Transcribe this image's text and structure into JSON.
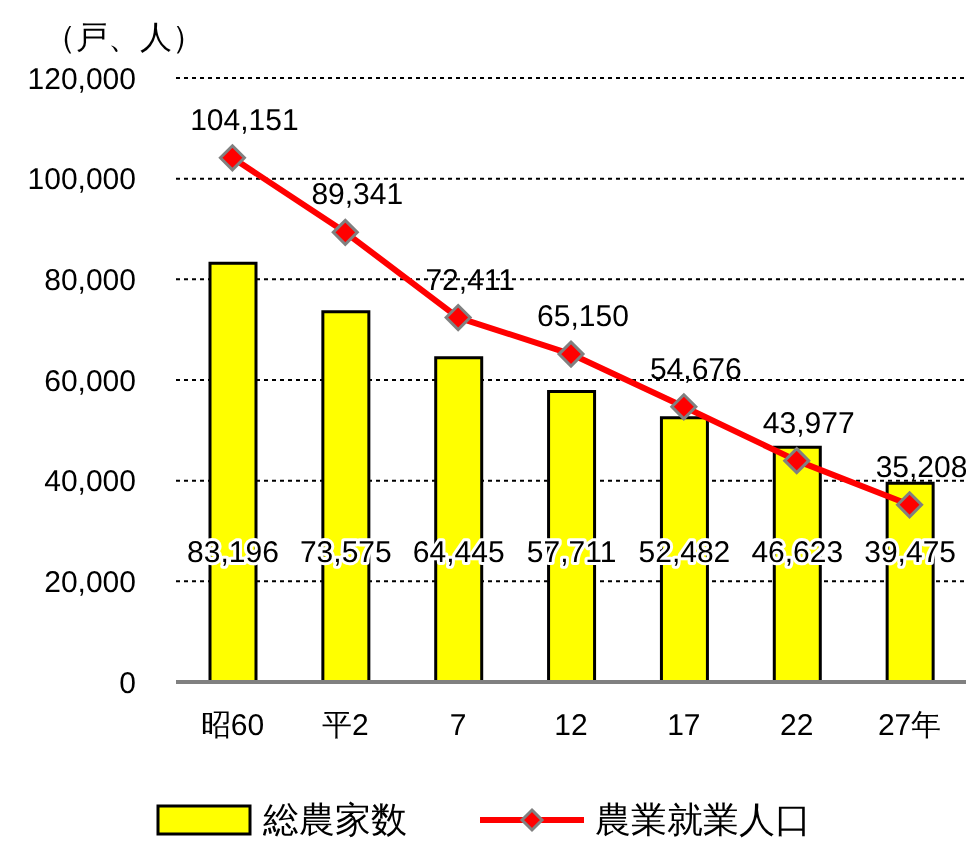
{
  "chart_data": {
    "type": "bar",
    "ylabel": "（戸、人）",
    "categories": [
      "昭60",
      "平2",
      "7",
      "12",
      "17",
      "22",
      "27年"
    ],
    "series": [
      {
        "name": "総農家数",
        "color": "#ffff00",
        "values": [
          83196,
          73575,
          64445,
          57711,
          52482,
          46623,
          39475
        ],
        "value_labels": [
          "83,196",
          "73,575",
          "64,445",
          "57,711",
          "52,482",
          "46,623",
          "39,475"
        ]
      },
      {
        "name": "農業就業人口",
        "type": "line",
        "color": "#ff0000",
        "values": [
          104151,
          89341,
          72411,
          65150,
          54676,
          43977,
          35208
        ],
        "value_labels": [
          "104,151",
          "89,341",
          "72,411",
          "65,150",
          "54,676",
          "43,977",
          "35,208"
        ]
      }
    ],
    "ylim": [
      0,
      120000
    ],
    "yticks": [
      0,
      {
        "value": 20000,
        "label": "20,000"
      },
      {
        "value": 40000,
        "label": "40,000"
      },
      {
        "value": 60000,
        "label": "60,000"
      },
      {
        "value": 80000,
        "label": "80,000"
      },
      {
        "value": 100000,
        "label": "100,000"
      },
      {
        "value": 120000,
        "label": "120,000"
      }
    ],
    "grid": "y",
    "legend": "bottom",
    "marker": "diamond"
  }
}
